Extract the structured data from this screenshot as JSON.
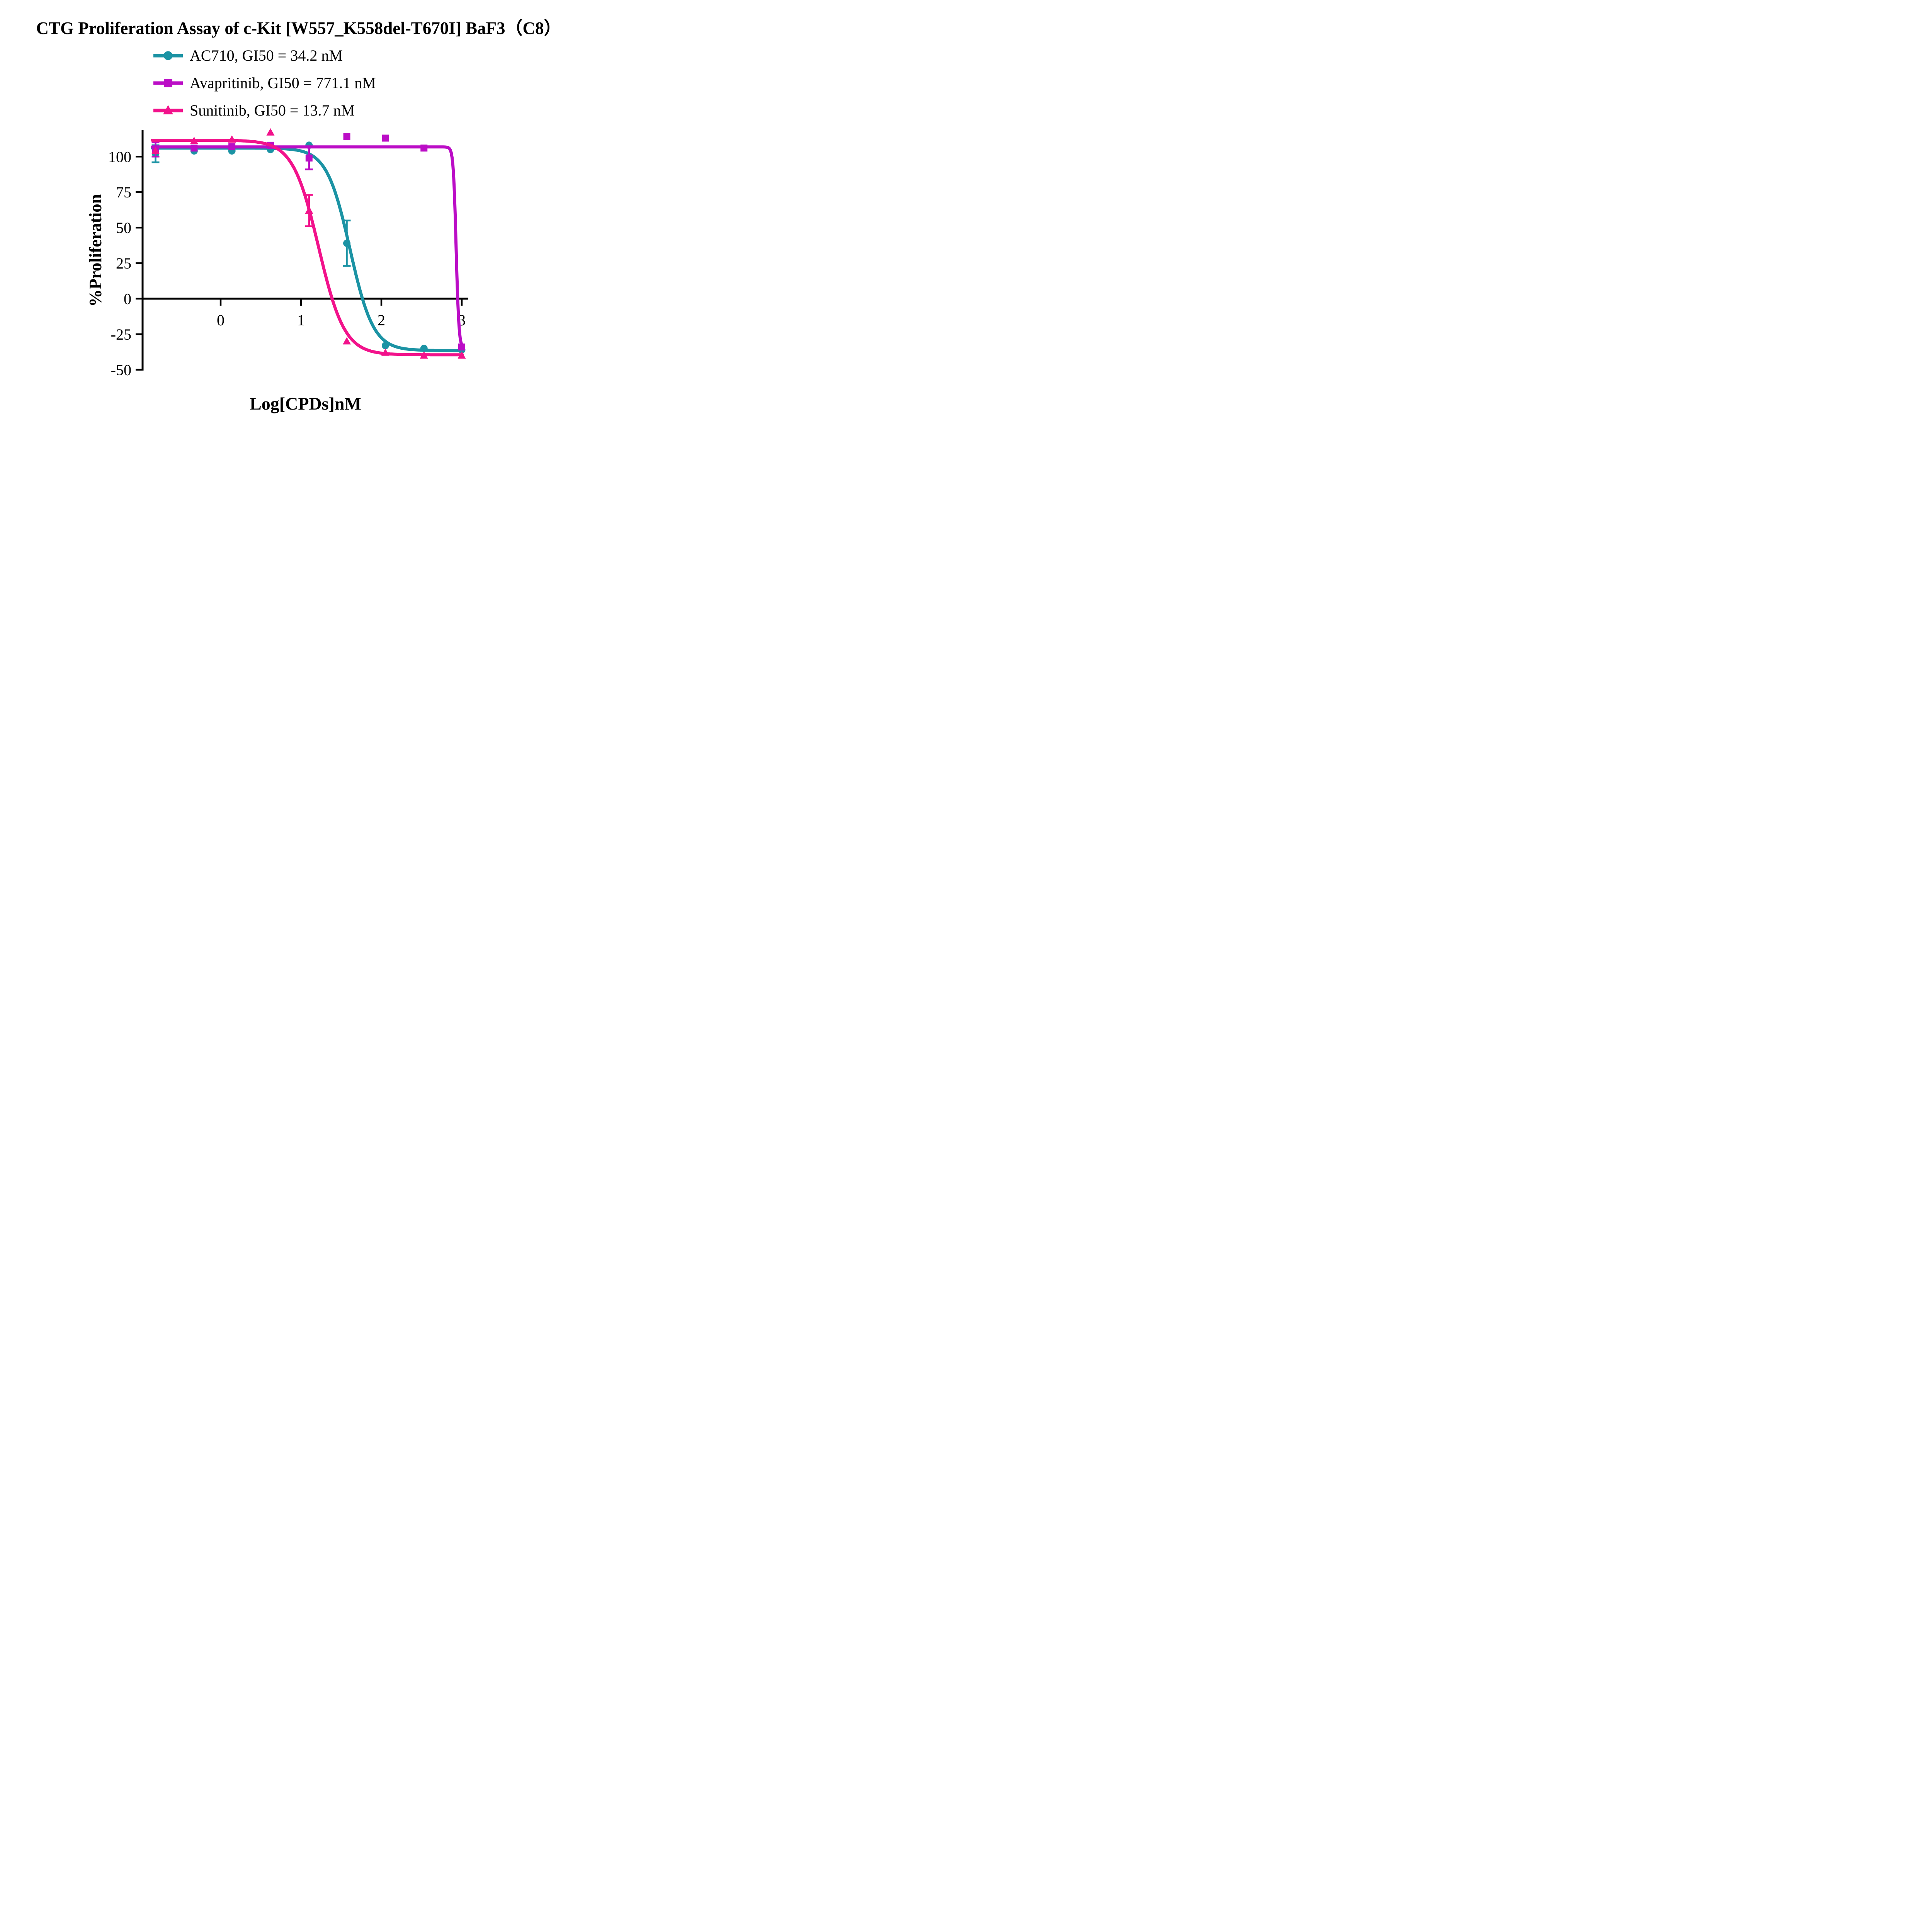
{
  "title": "CTG Proliferation Assay of c-Kit [W557_K558del-T670I] BaF3（C8）",
  "legend": [
    {
      "label": "AC710, GI50 = 34.2 nM",
      "color": "#1B93A4",
      "marker": "circle"
    },
    {
      "label": "Avapritinib, GI50 = 771.1 nM",
      "color": "#BB0DC6",
      "marker": "square"
    },
    {
      "label": "Sunitinib, GI50 = 13.7 nM",
      "color": "#F2128B",
      "marker": "triangle"
    }
  ],
  "chart_data": {
    "type": "line",
    "title": "CTG Proliferation Assay of c-Kit [W557_K558del-T670I] BaF3（C8）",
    "xlabel": "Log[CPDs]nM",
    "ylabel": "%Proliferation",
    "x_ticks": [
      0,
      1,
      2,
      3
    ],
    "x_tick_labels": [
      "0",
      "1",
      "2",
      "3"
    ],
    "y_ticks": [
      100,
      75,
      50,
      25,
      0,
      -25,
      -50
    ],
    "y_tick_labels": [
      "100",
      "75",
      "50",
      "25",
      "0",
      "-25",
      "-50"
    ],
    "xlim": [
      -0.97,
      3.08
    ],
    "ylim": [
      -50,
      118
    ],
    "grid": false,
    "legend_position": "top-left-above-plot",
    "axis_color": "#000000",
    "x": [
      -0.81,
      -0.33,
      0.14,
      0.62,
      1.1,
      1.57,
      2.05,
      2.53,
      3.0
    ],
    "series": [
      {
        "name": "AC710",
        "gi50_label": "GI50 = 34.2 nM",
        "color": "#1B93A4",
        "marker": "circle",
        "x": [
          -0.81,
          -0.33,
          0.14,
          0.62,
          1.1,
          1.57,
          2.05,
          2.53,
          3.0
        ],
        "y": [
          102,
          104,
          104,
          105,
          108,
          39,
          -33,
          -35,
          -36
        ],
        "yerr": [
          6,
          0,
          0,
          0,
          0,
          16,
          0,
          0,
          0
        ],
        "fit": {
          "top": 106,
          "bottom": -36.5,
          "logec50": 1.61,
          "hill": -3.0
        }
      },
      {
        "name": "Avapritinib",
        "gi50_label": "GI50 = 771.1 nM",
        "color": "#BB0DC6",
        "marker": "square",
        "x": [
          -0.81,
          -0.33,
          0.14,
          0.62,
          1.1,
          1.57,
          2.05,
          2.53,
          3.0
        ],
        "y": [
          105,
          106,
          107,
          108,
          99,
          114,
          113,
          106,
          -34
        ],
        "yerr": [
          5,
          0,
          0,
          0,
          8,
          0,
          0,
          0,
          0
        ],
        "fit": {
          "top": 106.8,
          "bottom": -35,
          "logec50": 2.93,
          "hill": -25
        }
      },
      {
        "name": "Sunitinib",
        "gi50_label": "GI50 = 13.7 nM",
        "color": "#F2128B",
        "marker": "triangle",
        "x": [
          -0.81,
          -0.33,
          0.14,
          0.62,
          1.1,
          1.57,
          2.05,
          2.53,
          3.0
        ],
        "y": [
          104,
          111,
          112,
          117,
          62,
          -30,
          -38,
          -40,
          -40
        ],
        "yerr": [
          0,
          0,
          0,
          0,
          11,
          0,
          0,
          0,
          0
        ],
        "fit": {
          "top": 111.5,
          "bottom": -39.5,
          "logec50": 1.22,
          "hill": -2.7
        }
      }
    ]
  }
}
